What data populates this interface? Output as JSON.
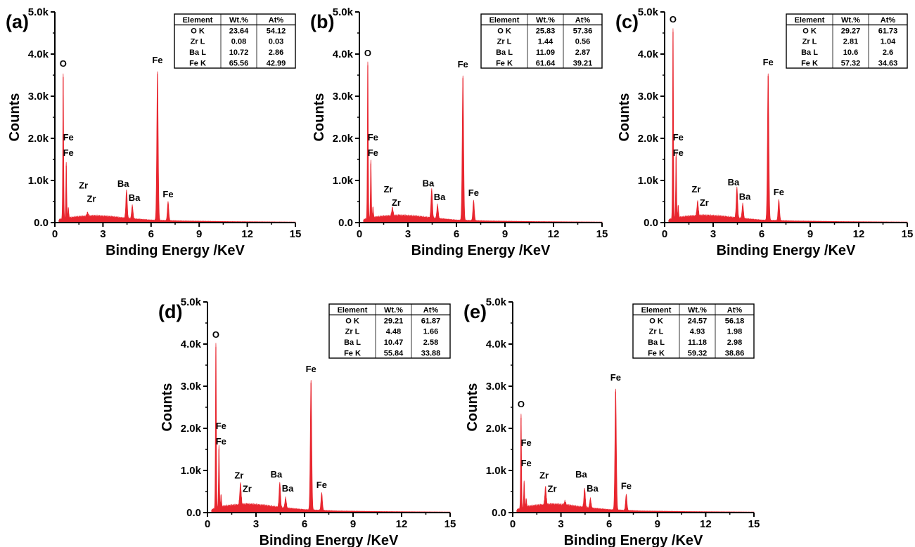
{
  "chart_data": [
    {
      "type": "area",
      "panel_label": "(a)",
      "xlabel": "Binding Energy /KeV",
      "ylabel": "Counts",
      "xlim": [
        0,
        15
      ],
      "ylim": [
        0,
        5000
      ],
      "x_ticks": [
        "0",
        "3",
        "6",
        "9",
        "12",
        "15"
      ],
      "y_ticks": [
        "0.0",
        "1.0k",
        "2.0k",
        "3.0k",
        "4.0k",
        "5.0k"
      ],
      "color": "#e8262f",
      "grid": false,
      "spectrum": {
        "background": [
          [
            0.3,
            80
          ],
          [
            1.0,
            120
          ],
          [
            1.5,
            140
          ],
          [
            2.5,
            160
          ],
          [
            3.5,
            140
          ],
          [
            4.5,
            100
          ],
          [
            6.0,
            60
          ],
          [
            8.0,
            40
          ],
          [
            11.0,
            25
          ],
          [
            15.0,
            15
          ]
        ],
        "peaks": [
          [
            0.52,
            3450
          ],
          [
            0.71,
            1350
          ],
          [
            0.84,
            250
          ],
          [
            2.04,
            90
          ],
          [
            4.47,
            680
          ],
          [
            4.83,
            320
          ],
          [
            6.4,
            3530
          ],
          [
            7.06,
            450
          ]
        ]
      },
      "peak_labels": [
        {
          "text": "O",
          "x": 0.52,
          "y": 3700
        },
        {
          "text": "Fe",
          "x": 0.84,
          "y": 1950
        },
        {
          "text": "Fe",
          "x": 0.84,
          "y": 1580
        },
        {
          "text": "Zr",
          "x": 1.78,
          "y": 810
        },
        {
          "text": "Zr",
          "x": 2.28,
          "y": 490
        },
        {
          "text": "Ba",
          "x": 4.26,
          "y": 850
        },
        {
          "text": "Ba",
          "x": 4.96,
          "y": 520
        },
        {
          "text": "Fe",
          "x": 6.4,
          "y": 3780
        },
        {
          "text": "Fe",
          "x": 7.06,
          "y": 600
        }
      ],
      "table": {
        "columns": [
          "Element",
          "Wt.%",
          "At%"
        ],
        "rows": [
          [
            "O K",
            "23.64",
            "54.12"
          ],
          [
            "Zr L",
            "0.08",
            "0.03"
          ],
          [
            "Ba L",
            "10.72",
            "2.86"
          ],
          [
            "Fe K",
            "65.56",
            "42.99"
          ]
        ]
      }
    },
    {
      "type": "area",
      "panel_label": "(b)",
      "xlabel": "Binding Energy /KeV",
      "ylabel": "Counts",
      "xlim": [
        0,
        15
      ],
      "ylim": [
        0,
        5000
      ],
      "x_ticks": [
        "0",
        "3",
        "6",
        "9",
        "12",
        "15"
      ],
      "y_ticks": [
        "0.0",
        "1.0k",
        "2.0k",
        "3.0k",
        "4.0k",
        "5.0k"
      ],
      "color": "#e8262f",
      "grid": false,
      "spectrum": {
        "background": [
          [
            0.3,
            80
          ],
          [
            1.0,
            130
          ],
          [
            1.5,
            150
          ],
          [
            2.5,
            170
          ],
          [
            3.5,
            150
          ],
          [
            4.5,
            110
          ],
          [
            6.0,
            60
          ],
          [
            8.0,
            40
          ],
          [
            11.0,
            25
          ],
          [
            15.0,
            15
          ]
        ],
        "peaks": [
          [
            0.52,
            3730
          ],
          [
            0.71,
            1400
          ],
          [
            0.84,
            260
          ],
          [
            2.04,
            200
          ],
          [
            4.47,
            700
          ],
          [
            4.83,
            330
          ],
          [
            6.4,
            3430
          ],
          [
            7.06,
            480
          ]
        ]
      },
      "peak_labels": [
        {
          "text": "O",
          "x": 0.52,
          "y": 3950
        },
        {
          "text": "Fe",
          "x": 0.84,
          "y": 1950
        },
        {
          "text": "Fe",
          "x": 0.84,
          "y": 1580
        },
        {
          "text": "Zr",
          "x": 1.78,
          "y": 720
        },
        {
          "text": "Zr",
          "x": 2.28,
          "y": 400
        },
        {
          "text": "Ba",
          "x": 4.26,
          "y": 860
        },
        {
          "text": "Ba",
          "x": 4.96,
          "y": 530
        },
        {
          "text": "Fe",
          "x": 6.4,
          "y": 3680
        },
        {
          "text": "Fe",
          "x": 7.06,
          "y": 630
        }
      ],
      "table": {
        "columns": [
          "Element",
          "Wt.%",
          "At%"
        ],
        "rows": [
          [
            "O K",
            "25.83",
            "57.36"
          ],
          [
            "Zr L",
            "1.44",
            "0.56"
          ],
          [
            "Ba L",
            "11.09",
            "2.87"
          ],
          [
            "Fe K",
            "61.64",
            "39.21"
          ]
        ]
      }
    },
    {
      "type": "area",
      "panel_label": "(c)",
      "xlabel": "Binding Energy /KeV",
      "ylabel": "Counts",
      "xlim": [
        0,
        15
      ],
      "ylim": [
        0,
        5000
      ],
      "x_ticks": [
        "0",
        "3",
        "6",
        "9",
        "12",
        "15"
      ],
      "y_ticks": [
        "0.0",
        "1.0k",
        "2.0k",
        "3.0k",
        "4.0k",
        "5.0k"
      ],
      "color": "#e8262f",
      "grid": false,
      "spectrum": {
        "background": [
          [
            0.3,
            80
          ],
          [
            1.0,
            130
          ],
          [
            1.5,
            150
          ],
          [
            2.5,
            170
          ],
          [
            3.5,
            150
          ],
          [
            4.5,
            110
          ],
          [
            6.0,
            60
          ],
          [
            8.0,
            40
          ],
          [
            11.0,
            25
          ],
          [
            15.0,
            15
          ]
        ],
        "peaks": [
          [
            0.52,
            4520
          ],
          [
            0.71,
            1550
          ],
          [
            0.84,
            300
          ],
          [
            2.04,
            350
          ],
          [
            4.47,
            740
          ],
          [
            4.83,
            350
          ],
          [
            6.4,
            3480
          ],
          [
            7.06,
            500
          ]
        ]
      },
      "peak_labels": [
        {
          "text": "O",
          "x": 0.52,
          "y": 4750
        },
        {
          "text": "Fe",
          "x": 0.84,
          "y": 1950
        },
        {
          "text": "Fe",
          "x": 0.84,
          "y": 1580
        },
        {
          "text": "Zr",
          "x": 1.95,
          "y": 720
        },
        {
          "text": "Zr",
          "x": 2.45,
          "y": 400
        },
        {
          "text": "Ba",
          "x": 4.26,
          "y": 880
        },
        {
          "text": "Ba",
          "x": 4.96,
          "y": 540
        },
        {
          "text": "Fe",
          "x": 6.4,
          "y": 3730
        },
        {
          "text": "Fe",
          "x": 7.06,
          "y": 650
        }
      ],
      "table": {
        "columns": [
          "Element",
          "Wt.%",
          "At%"
        ],
        "rows": [
          [
            "O K",
            "29.27",
            "61.73"
          ],
          [
            "Zr L",
            "2.81",
            "1.04"
          ],
          [
            "Ba L",
            "10.6",
            "2.6"
          ],
          [
            "Fe K",
            "57.32",
            "34.63"
          ]
        ]
      }
    },
    {
      "type": "area",
      "panel_label": "(d)",
      "xlabel": "Binding Energy /KeV",
      "ylabel": "Counts",
      "xlim": [
        0,
        15
      ],
      "ylim": [
        0,
        5000
      ],
      "x_ticks": [
        "0",
        "3",
        "6",
        "9",
        "12",
        "15"
      ],
      "y_ticks": [
        "0.0",
        "1.0k",
        "2.0k",
        "3.0k",
        "4.0k",
        "5.0k"
      ],
      "color": "#e8262f",
      "grid": false,
      "spectrum": {
        "background": [
          [
            0.3,
            80
          ],
          [
            1.0,
            150
          ],
          [
            1.5,
            170
          ],
          [
            2.5,
            200
          ],
          [
            3.5,
            170
          ],
          [
            4.5,
            120
          ],
          [
            6.0,
            70
          ],
          [
            8.0,
            40
          ],
          [
            11.0,
            25
          ],
          [
            15.0,
            15
          ]
        ],
        "peaks": [
          [
            0.52,
            3930
          ],
          [
            0.71,
            1500
          ],
          [
            0.84,
            300
          ],
          [
            2.04,
            520
          ],
          [
            4.47,
            600
          ],
          [
            4.83,
            250
          ],
          [
            6.4,
            3080
          ],
          [
            7.06,
            420
          ]
        ]
      },
      "peak_labels": [
        {
          "text": "O",
          "x": 0.52,
          "y": 4150
        },
        {
          "text": "Fe",
          "x": 0.84,
          "y": 1980
        },
        {
          "text": "Fe",
          "x": 0.84,
          "y": 1620
        },
        {
          "text": "Zr",
          "x": 1.95,
          "y": 810
        },
        {
          "text": "Zr",
          "x": 2.45,
          "y": 490
        },
        {
          "text": "Ba",
          "x": 4.26,
          "y": 830
        },
        {
          "text": "Ba",
          "x": 4.96,
          "y": 500
        },
        {
          "text": "Fe",
          "x": 6.4,
          "y": 3330
        },
        {
          "text": "Fe",
          "x": 7.06,
          "y": 580
        }
      ],
      "table": {
        "columns": [
          "Element",
          "Wt.%",
          "At%"
        ],
        "rows": [
          [
            "O K",
            "29.21",
            "61.87"
          ],
          [
            "Zr L",
            "4.48",
            "1.66"
          ],
          [
            "Ba L",
            "10.47",
            "2.58"
          ],
          [
            "Fe K",
            "55.84",
            "33.88"
          ]
        ]
      }
    },
    {
      "type": "area",
      "panel_label": "(e)",
      "xlabel": "Binding Energy /KeV",
      "ylabel": "Counts",
      "xlim": [
        0,
        15
      ],
      "ylim": [
        0,
        5000
      ],
      "x_ticks": [
        "0",
        "3",
        "6",
        "9",
        "12",
        "15"
      ],
      "y_ticks": [
        "0.0",
        "1.0k",
        "2.0k",
        "3.0k",
        "4.0k",
        "5.0k"
      ],
      "color": "#e8262f",
      "grid": false,
      "spectrum": {
        "background": [
          [
            0.3,
            80
          ],
          [
            1.0,
            150
          ],
          [
            1.5,
            170
          ],
          [
            2.5,
            200
          ],
          [
            3.5,
            170
          ],
          [
            4.5,
            120
          ],
          [
            6.0,
            70
          ],
          [
            8.0,
            40
          ],
          [
            11.0,
            25
          ],
          [
            15.0,
            15
          ]
        ],
        "peaks": [
          [
            0.52,
            2250
          ],
          [
            0.71,
            650
          ],
          [
            0.84,
            200
          ],
          [
            2.04,
            430
          ],
          [
            3.25,
            100
          ],
          [
            4.47,
            460
          ],
          [
            4.83,
            230
          ],
          [
            6.4,
            2870
          ],
          [
            7.06,
            380
          ]
        ]
      },
      "peak_labels": [
        {
          "text": "O",
          "x": 0.52,
          "y": 2500
        },
        {
          "text": "Fe",
          "x": 0.84,
          "y": 1580
        },
        {
          "text": "Fe",
          "x": 0.84,
          "y": 1100
        },
        {
          "text": "Zr",
          "x": 1.95,
          "y": 810
        },
        {
          "text": "Zr",
          "x": 2.45,
          "y": 490
        },
        {
          "text": "Ba",
          "x": 4.26,
          "y": 830
        },
        {
          "text": "Ba",
          "x": 4.96,
          "y": 500
        },
        {
          "text": "Fe",
          "x": 6.4,
          "y": 3130
        },
        {
          "text": "Fe",
          "x": 7.06,
          "y": 560
        }
      ],
      "table": {
        "columns": [
          "Element",
          "Wt.%",
          "At%"
        ],
        "rows": [
          [
            "O K",
            "24.57",
            "56.18"
          ],
          [
            "Zr L",
            "4.93",
            "1.98"
          ],
          [
            "Ba L",
            "11.18",
            "2.98"
          ],
          [
            "Fe K",
            "59.32",
            "38.86"
          ]
        ]
      }
    }
  ]
}
